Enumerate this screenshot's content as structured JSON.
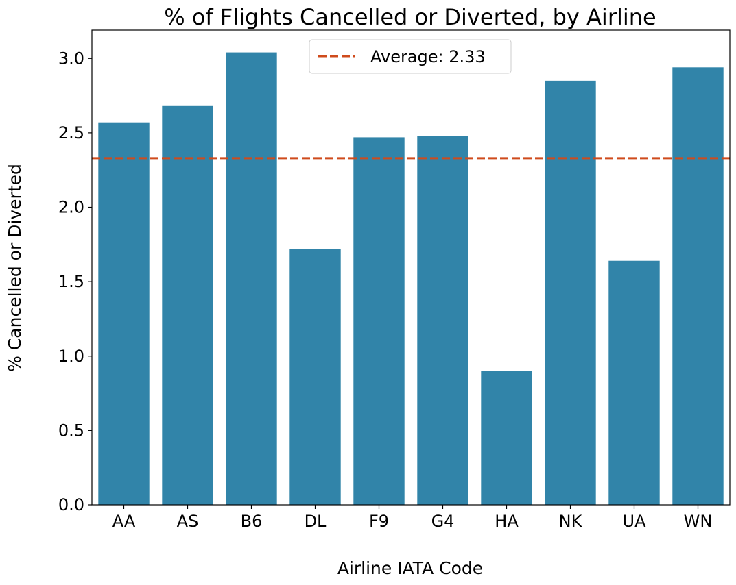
{
  "chart_data": {
    "type": "bar",
    "title": "% of Flights Cancelled or Diverted, by Airline",
    "xlabel": "Airline IATA Code",
    "ylabel": "% Cancelled or Diverted",
    "categories": [
      "AA",
      "AS",
      "B6",
      "DL",
      "F9",
      "G4",
      "HA",
      "NK",
      "UA",
      "WN"
    ],
    "values": [
      2.57,
      2.68,
      3.04,
      1.72,
      2.47,
      2.48,
      0.9,
      2.85,
      1.64,
      2.94
    ],
    "ylim": [
      0,
      3.19
    ],
    "yticks": [
      "0.0",
      "0.5",
      "1.0",
      "1.5",
      "2.0",
      "2.5",
      "3.0"
    ],
    "average": {
      "value": 2.33,
      "label": "Average: 2.33"
    },
    "legend_position": "top-center",
    "grid": false,
    "colors": {
      "bar": "#3184a9",
      "average_line": "#cf4b1c"
    }
  }
}
